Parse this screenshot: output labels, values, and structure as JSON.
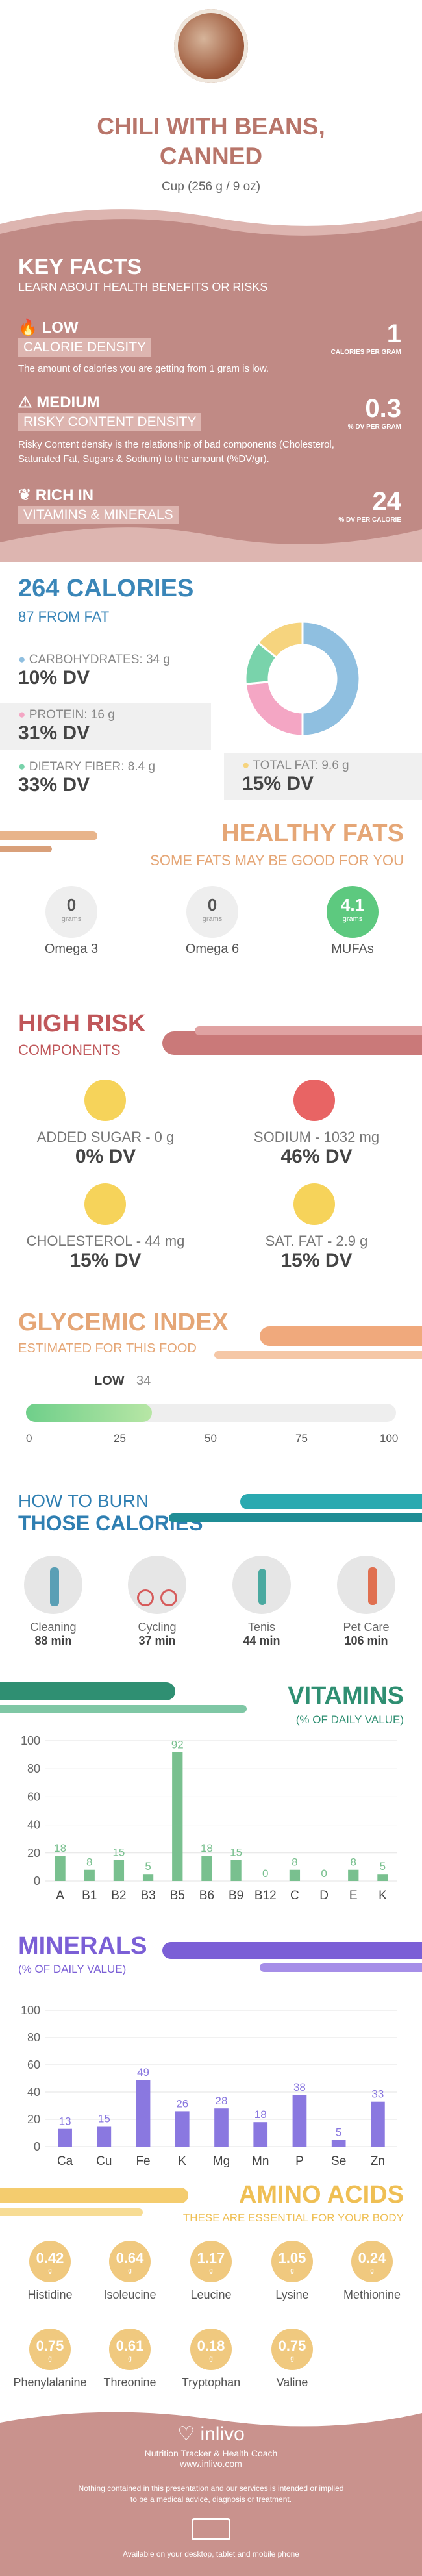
{
  "header": {
    "title_line1": "CHILI WITH BEANS,",
    "title_line2": "CANNED",
    "serving": "Cup (256 g / 9 oz)"
  },
  "key_facts": {
    "title": "KEY FACTS",
    "subtitle": "LEARN ABOUT HEALTH BENEFITS OR RISKS",
    "rows": [
      {
        "tag1": "LOW",
        "tag2": "CALORIE DENSITY",
        "desc": "The amount of calories you are getting from 1 gram is low.",
        "value": "1",
        "unit": "CALORIES PER GRAM"
      },
      {
        "tag1": "MEDIUM",
        "tag2": "RISKY CONTENT DENSITY",
        "desc": "Risky Content density is the relationship of bad components (Cholesterol, Saturated Fat, Sugars & Sodium) to the amount (%DV/gr).",
        "value": "0.3",
        "unit": "% DV PER GRAM"
      },
      {
        "tag1": "RICH IN",
        "tag2": "VITAMINS & MINERALS",
        "desc": "",
        "value": "24",
        "unit": "% DV PER CALORIE"
      }
    ]
  },
  "calories": {
    "title": "264 CALORIES",
    "subtitle": "87 FROM FAT",
    "macros": [
      {
        "label": "CARBOHYDRATES: 34 g",
        "dv": "10% DV",
        "color": "#8fbfe0"
      },
      {
        "label": "PROTEIN: 16 g",
        "dv": "31% DV",
        "color": "#f4a6c4"
      },
      {
        "label": "DIETARY FIBER: 8.4 g",
        "dv": "33% DV",
        "color": "#79d3ab"
      },
      {
        "label": "TOTAL FAT: 9.6 g",
        "dv": "15% DV",
        "color": "#f6d47e"
      }
    ],
    "donut": [
      {
        "value": 34,
        "color": "#8fbfe0"
      },
      {
        "value": 16,
        "color": "#f4a6c4"
      },
      {
        "value": 8.4,
        "color": "#79d3ab"
      },
      {
        "value": 9.6,
        "color": "#f6d47e"
      }
    ]
  },
  "healthy_fats": {
    "title": "HEALTHY FATS",
    "subtitle": "SOME FATS MAY BE GOOD FOR YOU",
    "items": [
      {
        "value": "0",
        "unit": "grams",
        "label": "Omega 3"
      },
      {
        "value": "0",
        "unit": "grams",
        "label": "Omega 6"
      },
      {
        "value": "4.1",
        "unit": "grams",
        "label": "MUFAs"
      }
    ]
  },
  "high_risk": {
    "title": "HIGH RISK",
    "subtitle": "COMPONENTS",
    "items": [
      {
        "label": "ADDED SUGAR - 0 g",
        "dv": "0% DV"
      },
      {
        "label": "SODIUM - 1032 mg",
        "dv": "46% DV"
      },
      {
        "label": "CHOLESTEROL - 44 mg",
        "dv": "15% DV"
      },
      {
        "label": "SAT. FAT - 2.9 g",
        "dv": "15% DV"
      }
    ]
  },
  "glycemic": {
    "title": "GLYCEMIC INDEX",
    "subtitle": "ESTIMATED FOR THIS FOOD",
    "level": "LOW",
    "value": "34",
    "ticks": [
      "0",
      "25",
      "50",
      "75",
      "100"
    ]
  },
  "burn": {
    "title1": "HOW TO BURN",
    "title2": "THOSE CALORIES",
    "items": [
      {
        "name": "Cleaning",
        "min": "88 min"
      },
      {
        "name": "Cycling",
        "min": "37 min"
      },
      {
        "name": "Tenis",
        "min": "44 min"
      },
      {
        "name": "Pet Care",
        "min": "106 min"
      }
    ]
  },
  "vitamins": {
    "title": "VITAMINS",
    "subtitle": "(% OF DAILY VALUE)"
  },
  "minerals": {
    "title": "MINERALS",
    "subtitle": "(% OF DAILY VALUE)"
  },
  "chart_data": [
    {
      "type": "bar",
      "categories": [
        "A",
        "B1",
        "B2",
        "B3",
        "B5",
        "B6",
        "B9",
        "B12",
        "C",
        "D",
        "E",
        "K"
      ],
      "values": [
        18,
        8,
        15,
        5,
        92,
        18,
        15,
        0,
        8,
        0,
        8,
        5
      ],
      "ylim": [
        0,
        100
      ],
      "yticks": [
        "0",
        "20",
        "40",
        "60",
        "80",
        "100"
      ],
      "color": "#79c08f",
      "grid": true
    },
    {
      "type": "bar",
      "categories": [
        "Ca",
        "Cu",
        "Fe",
        "K",
        "Mg",
        "Mn",
        "P",
        "Se",
        "Zn"
      ],
      "values": [
        13,
        15,
        49,
        26,
        28,
        18,
        38,
        5,
        33
      ],
      "ylim": [
        0,
        100
      ],
      "yticks": [
        "0",
        "20",
        "40",
        "60",
        "80",
        "100"
      ],
      "color": "#8a78e0",
      "grid": true
    }
  ],
  "amino": {
    "title": "AMINO ACIDS",
    "subtitle": "THESE ARE ESSENTIAL FOR YOUR BODY",
    "unit": "g",
    "items": [
      {
        "v": "0.42",
        "n": "Histidine"
      },
      {
        "v": "0.64",
        "n": "Isoleucine"
      },
      {
        "v": "1.17",
        "n": "Leucine"
      },
      {
        "v": "1.05",
        "n": "Lysine"
      },
      {
        "v": "0.24",
        "n": "Methionine"
      },
      {
        "v": "0.75",
        "n": "Phenylalanine"
      },
      {
        "v": "0.61",
        "n": "Threonine"
      },
      {
        "v": "0.18",
        "n": "Tryptophan"
      },
      {
        "v": "0.75",
        "n": "Valine"
      }
    ]
  },
  "footer": {
    "brand": "inlivo",
    "tagline": "Nutrition Tracker & Health Coach",
    "url": "www.inlivo.com",
    "disclaimer": "Nothing contained in this presentation and our services is intended or implied to be a medical advice, diagnosis or treatment.",
    "available": "Available on your desktop, tablet and mobile phone"
  }
}
